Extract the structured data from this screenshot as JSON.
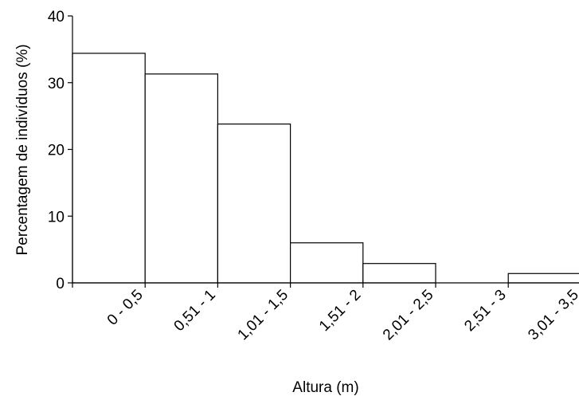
{
  "chart_data": {
    "type": "bar",
    "xlabel": "Altura (m)",
    "ylabel": "Percentagem de indivíduos (%)",
    "categories": [
      "0 - 0,5",
      "0,51 - 1",
      "1,01 - 1,5",
      "1,51 - 2",
      "2,01 - 2,5",
      "2,51 - 3",
      "3,01 - 3,5"
    ],
    "values": [
      34.4,
      31.3,
      23.8,
      6.0,
      2.9,
      0,
      1.4
    ],
    "ylim": [
      0,
      40
    ],
    "yticks": [
      "0",
      "10",
      "20",
      "30",
      "40"
    ],
    "grid": false,
    "legend": "none",
    "bar_fill": "#ffffff",
    "bar_stroke": "#000000"
  }
}
